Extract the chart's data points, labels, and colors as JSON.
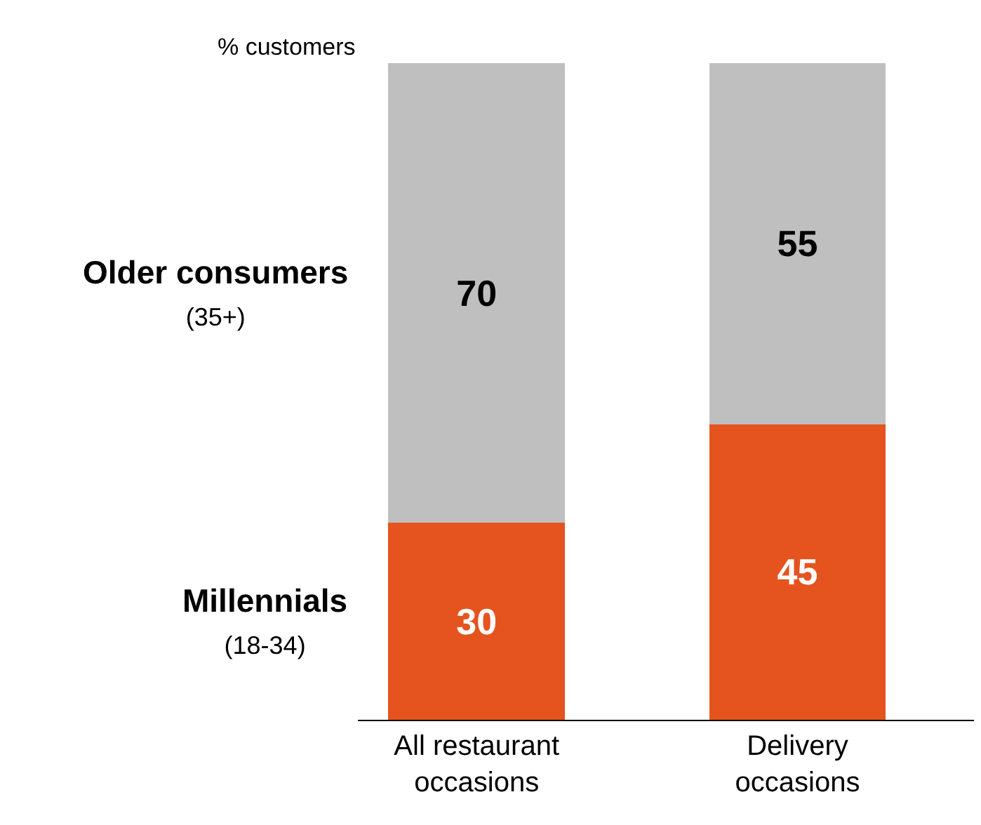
{
  "chart_data": {
    "type": "bar",
    "stacked": true,
    "ylabel": "% customers",
    "categories": [
      "All restaurant\noccasions",
      "Delivery\noccasions"
    ],
    "series": [
      {
        "name": "Millennials\n(18-34)",
        "color": "#e5541f",
        "values": [
          30,
          45
        ]
      },
      {
        "name": "Older consumers\n(35+)",
        "color": "#bfbfbf",
        "values": [
          70,
          55
        ]
      }
    ],
    "ylim": [
      0,
      100
    ],
    "data_labels": true,
    "legend": false
  }
}
